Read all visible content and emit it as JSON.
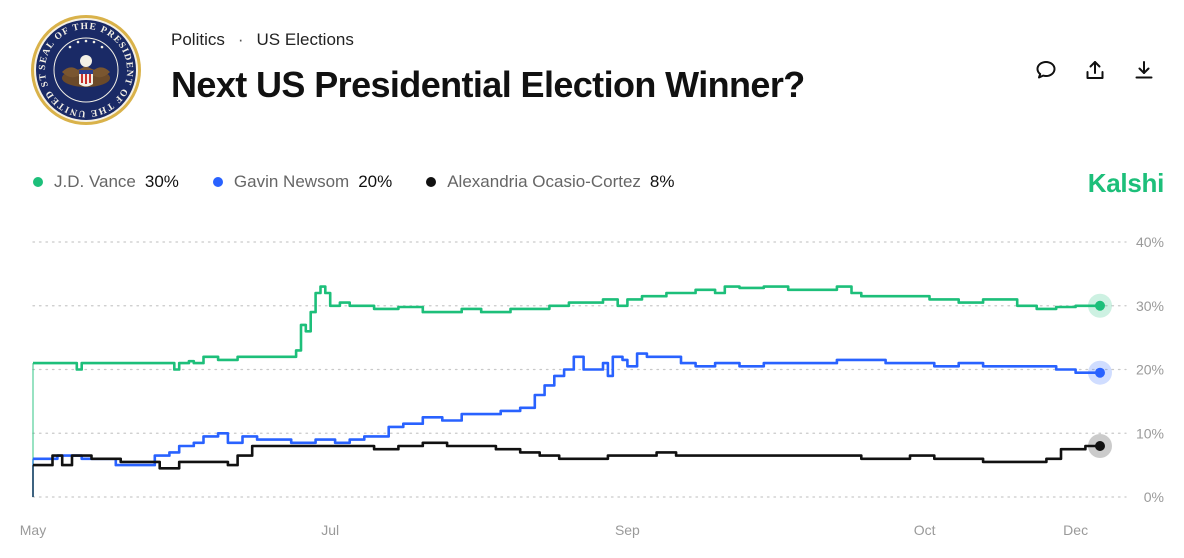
{
  "breadcrumb": {
    "category": "Politics",
    "separator": "·",
    "subcategory": "US Elections"
  },
  "title": "Next US Presidential Election Winner?",
  "brand": "Kalshi",
  "seal_text": "SEAL OF THE PRESIDENT OF THE UNITED STATES",
  "icons": [
    "comment-icon",
    "share-icon",
    "download-icon"
  ],
  "legend": [
    {
      "name": "J.D. Vance",
      "pct": "30%",
      "color": "#1dbf7a"
    },
    {
      "name": "Gavin Newsom",
      "pct": "20%",
      "color": "#2962ff"
    },
    {
      "name": "Alexandria Ocasio-Cortez",
      "pct": "8%",
      "color": "#111111"
    }
  ],
  "chart_data": {
    "type": "line",
    "step": true,
    "title": "Next US Presidential Election Winner?",
    "ylim": [
      0,
      40
    ],
    "yticks": [
      0,
      10,
      20,
      30,
      40
    ],
    "ytick_labels": [
      "0%",
      "10%",
      "20%",
      "30%",
      "40%"
    ],
    "xlim": [
      0,
      219
    ],
    "x_tick_positions": [
      0,
      61,
      122,
      183,
      214
    ],
    "x_tick_labels": [
      "May",
      "Jul",
      "Sep",
      "Oct",
      "Dec"
    ],
    "grid": true,
    "x_unit": "days since May 1",
    "series": [
      {
        "name": "J.D. Vance",
        "color": "#1dbf7a",
        "points": [
          [
            0,
            21
          ],
          [
            9,
            20
          ],
          [
            10,
            21
          ],
          [
            28,
            21
          ],
          [
            29,
            20
          ],
          [
            30,
            21
          ],
          [
            32,
            21.3
          ],
          [
            33,
            21
          ],
          [
            35,
            22
          ],
          [
            38,
            21.5
          ],
          [
            40,
            21.5
          ],
          [
            42,
            22
          ],
          [
            48,
            22
          ],
          [
            52,
            22
          ],
          [
            54,
            23
          ],
          [
            55,
            27
          ],
          [
            56,
            26
          ],
          [
            57,
            29
          ],
          [
            58,
            32
          ],
          [
            59,
            33
          ],
          [
            60,
            32
          ],
          [
            61,
            30
          ],
          [
            63,
            30.5
          ],
          [
            65,
            30
          ],
          [
            70,
            29.5
          ],
          [
            75,
            29.8
          ],
          [
            80,
            29
          ],
          [
            85,
            29
          ],
          [
            88,
            29.5
          ],
          [
            92,
            29
          ],
          [
            98,
            29.5
          ],
          [
            103,
            29.5
          ],
          [
            106,
            30
          ],
          [
            110,
            30.5
          ],
          [
            114,
            30.5
          ],
          [
            117,
            31
          ],
          [
            120,
            30
          ],
          [
            122,
            31
          ],
          [
            125,
            31.5
          ],
          [
            130,
            32
          ],
          [
            136,
            32.5
          ],
          [
            140,
            32
          ],
          [
            142,
            33
          ],
          [
            145,
            32.8
          ],
          [
            150,
            33
          ],
          [
            155,
            32.5
          ],
          [
            160,
            32.5
          ],
          [
            165,
            33
          ],
          [
            168,
            32
          ],
          [
            170,
            31.5
          ],
          [
            175,
            31.5
          ],
          [
            180,
            31.5
          ],
          [
            184,
            31
          ],
          [
            190,
            30.5
          ],
          [
            195,
            31
          ],
          [
            200,
            31
          ],
          [
            202,
            30
          ],
          [
            206,
            29.5
          ],
          [
            210,
            29.8
          ],
          [
            214,
            30
          ],
          [
            219,
            30
          ]
        ]
      },
      {
        "name": "Gavin Newsom",
        "color": "#2962ff",
        "points": [
          [
            0,
            6
          ],
          [
            5,
            6.5
          ],
          [
            10,
            6
          ],
          [
            15,
            6
          ],
          [
            17,
            5
          ],
          [
            20,
            5
          ],
          [
            25,
            6.5
          ],
          [
            28,
            7
          ],
          [
            30,
            8
          ],
          [
            33,
            8.5
          ],
          [
            35,
            9.5
          ],
          [
            38,
            10
          ],
          [
            40,
            8.5
          ],
          [
            43,
            9.5
          ],
          [
            46,
            9
          ],
          [
            50,
            9
          ],
          [
            53,
            8.5
          ],
          [
            55,
            8.5
          ],
          [
            58,
            9
          ],
          [
            62,
            8.5
          ],
          [
            65,
            9
          ],
          [
            68,
            9.5
          ],
          [
            70,
            9.5
          ],
          [
            73,
            11
          ],
          [
            76,
            11.5
          ],
          [
            80,
            12.5
          ],
          [
            84,
            12
          ],
          [
            88,
            13
          ],
          [
            92,
            13
          ],
          [
            96,
            13.5
          ],
          [
            100,
            14
          ],
          [
            103,
            16
          ],
          [
            105,
            17.5
          ],
          [
            107,
            19
          ],
          [
            109,
            20
          ],
          [
            111,
            22
          ],
          [
            113,
            20
          ],
          [
            115,
            20
          ],
          [
            117,
            21
          ],
          [
            118,
            19
          ],
          [
            119,
            22
          ],
          [
            121,
            21.5
          ],
          [
            122,
            20.5
          ],
          [
            124,
            22.5
          ],
          [
            126,
            22
          ],
          [
            130,
            22
          ],
          [
            133,
            21
          ],
          [
            136,
            20.5
          ],
          [
            140,
            21
          ],
          [
            145,
            20.5
          ],
          [
            150,
            21
          ],
          [
            155,
            21
          ],
          [
            160,
            21
          ],
          [
            165,
            21.5
          ],
          [
            170,
            21.5
          ],
          [
            175,
            21
          ],
          [
            180,
            21
          ],
          [
            185,
            20.5
          ],
          [
            190,
            21
          ],
          [
            195,
            20.5
          ],
          [
            200,
            20.5
          ],
          [
            205,
            20.5
          ],
          [
            210,
            20
          ],
          [
            214,
            19.5
          ],
          [
            219,
            19.5
          ]
        ]
      },
      {
        "name": "Alexandria Ocasio-Cortez",
        "color": "#111111",
        "points": [
          [
            0,
            5
          ],
          [
            4,
            6.5
          ],
          [
            6,
            5
          ],
          [
            8,
            6.5
          ],
          [
            12,
            6
          ],
          [
            16,
            6
          ],
          [
            18,
            5.5
          ],
          [
            22,
            5.5
          ],
          [
            26,
            4.5
          ],
          [
            30,
            5.5
          ],
          [
            35,
            5.5
          ],
          [
            40,
            5
          ],
          [
            42,
            6.5
          ],
          [
            45,
            8
          ],
          [
            50,
            8
          ],
          [
            55,
            8
          ],
          [
            60,
            8
          ],
          [
            65,
            8
          ],
          [
            70,
            7.5
          ],
          [
            75,
            8
          ],
          [
            80,
            8.5
          ],
          [
            85,
            8
          ],
          [
            90,
            8
          ],
          [
            95,
            7.5
          ],
          [
            100,
            7
          ],
          [
            104,
            6.5
          ],
          [
            108,
            6
          ],
          [
            112,
            6
          ],
          [
            118,
            6.5
          ],
          [
            123,
            6.5
          ],
          [
            128,
            7
          ],
          [
            132,
            6.5
          ],
          [
            136,
            6.5
          ],
          [
            140,
            6.5
          ],
          [
            145,
            6.5
          ],
          [
            150,
            6.5
          ],
          [
            155,
            6.5
          ],
          [
            160,
            6.5
          ],
          [
            165,
            6.5
          ],
          [
            170,
            6
          ],
          [
            175,
            6
          ],
          [
            180,
            6.5
          ],
          [
            185,
            6
          ],
          [
            190,
            6
          ],
          [
            195,
            5.5
          ],
          [
            200,
            5.5
          ],
          [
            205,
            5.5
          ],
          [
            208,
            6
          ],
          [
            211,
            7.5
          ],
          [
            213,
            7.5
          ],
          [
            216,
            8
          ],
          [
            219,
            8
          ]
        ]
      }
    ]
  }
}
